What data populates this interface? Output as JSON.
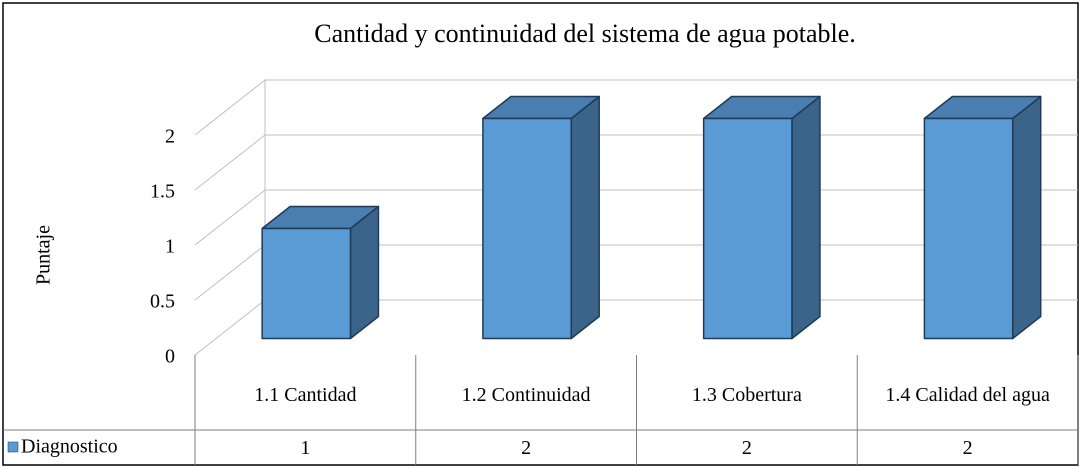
{
  "chart_data": {
    "type": "bar3d",
    "title": "Cantidad y continuidad del sistema de agua potable.",
    "y_label": "Puntaje",
    "categories": [
      "1.1 Cantidad",
      "1.2 Continuidad",
      "1.3 Cobertura",
      "1.4 Calidad del agua"
    ],
    "series": [
      {
        "name": "Diagnostico",
        "color": "#5b9bd5",
        "values": [
          1,
          2,
          2,
          2
        ]
      }
    ],
    "ylim": [
      0,
      2
    ],
    "yticks": [
      0,
      0.5,
      1,
      1.5,
      2
    ],
    "grid": true,
    "data_table": true
  }
}
